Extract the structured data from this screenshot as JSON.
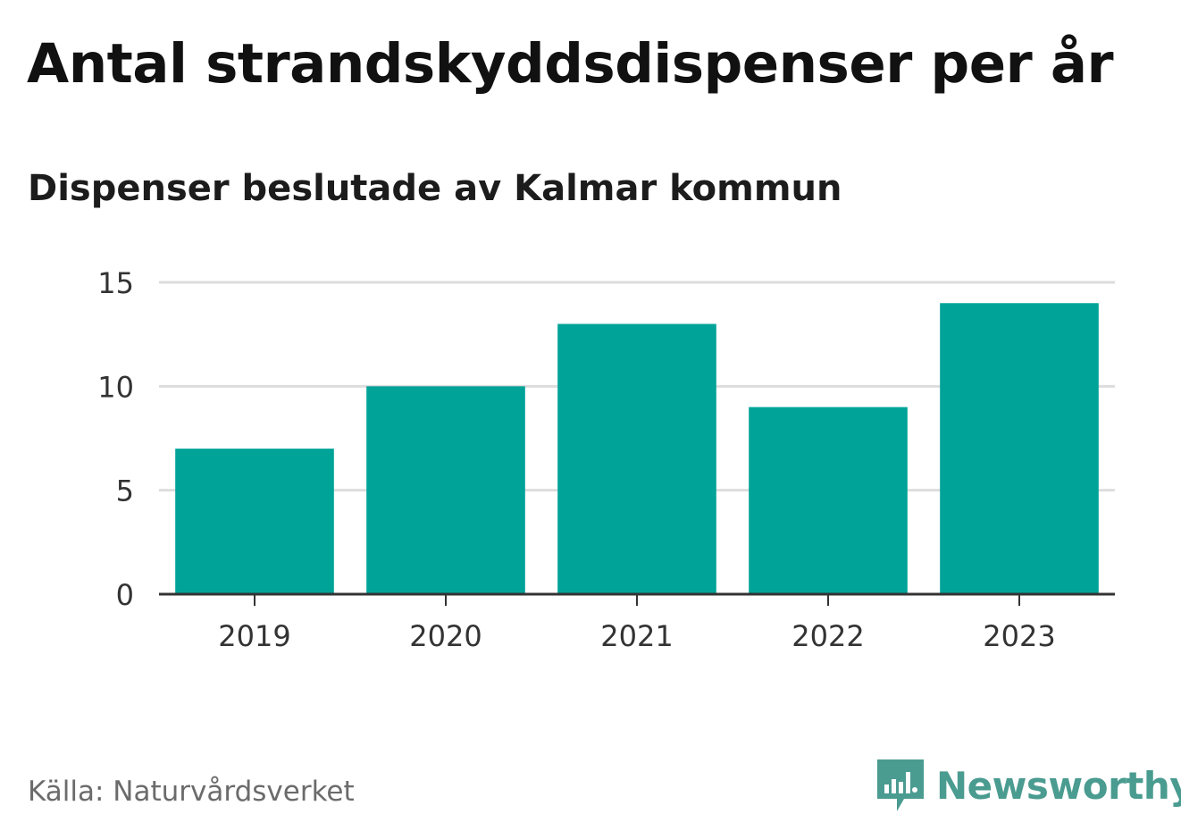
{
  "header": {
    "title": "Antal strandskyddsdispenser per år",
    "subtitle": "Dispenser beslutade av Kalmar kommun"
  },
  "footer": {
    "source": "Källa: Naturvårdsverket",
    "brand": "Newsworthy",
    "brand_icon": "newsworthy-logo-icon"
  },
  "colors": {
    "bar": "#00a398",
    "grid": "#dddddd",
    "axis": "#333333",
    "brand": "#4a9b90"
  },
  "chart_data": {
    "type": "bar",
    "title": "Antal strandskyddsdispenser per år",
    "subtitle": "Dispenser beslutade av Kalmar kommun",
    "categories": [
      "2019",
      "2020",
      "2021",
      "2022",
      "2023"
    ],
    "values": [
      7,
      10,
      13,
      9,
      14
    ],
    "xlabel": "",
    "ylabel": "",
    "ylim": [
      0,
      15
    ],
    "yticks": [
      0,
      5,
      10,
      15
    ],
    "grid": true,
    "legend": "none"
  }
}
